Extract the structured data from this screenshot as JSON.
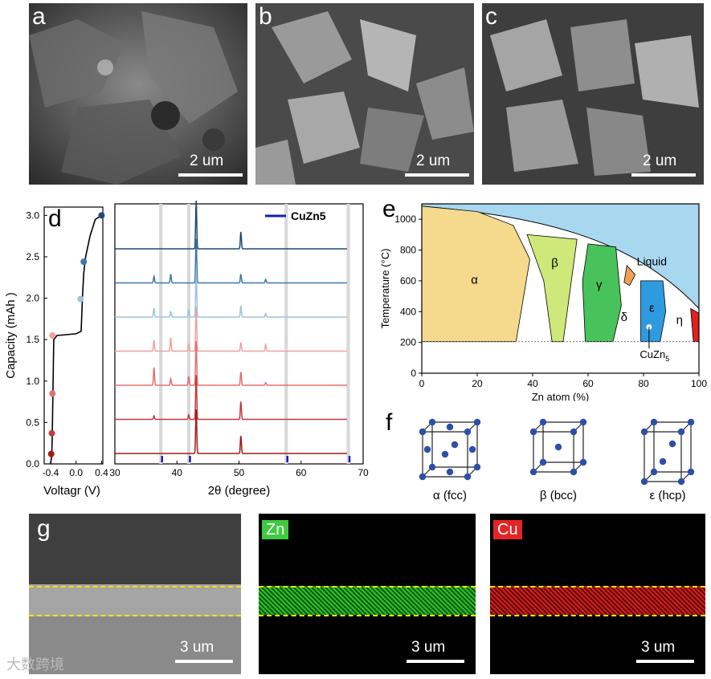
{
  "panels": {
    "a": {
      "letter": "a",
      "scale": "2 um"
    },
    "b": {
      "letter": "b",
      "scale": "2 um"
    },
    "c": {
      "letter": "c",
      "scale": "2 um"
    },
    "d": {
      "letter": "d"
    },
    "e": {
      "letter": "e"
    },
    "f": {
      "letter": "f"
    },
    "g": {
      "letter": "g",
      "scale": "3 um"
    },
    "zn": {
      "label": "Zn",
      "scale": "3 um",
      "color": "#3ecb3e"
    },
    "cu": {
      "label": "Cu",
      "scale": "3 um",
      "color": "#e52525"
    }
  },
  "watermark": "大数跨境",
  "chart_data": [
    {
      "type": "line",
      "panel": "d-left",
      "xlabel": "Voltagr (V)",
      "ylabel": "Capacity (mAh )",
      "xticks": [
        "-0.4",
        "0.0",
        "0.4"
      ],
      "yticks": [
        "0.0",
        "0.5",
        "1.0",
        "1.5",
        "2.0",
        "2.5",
        "3.0"
      ],
      "ylim": [
        0,
        3.1
      ],
      "curve": [
        [
          -0.4,
          0.0
        ],
        [
          -0.38,
          0.1
        ],
        [
          -0.37,
          0.5
        ],
        [
          -0.36,
          1.0
        ],
        [
          -0.35,
          1.5
        ],
        [
          -0.3,
          1.55
        ],
        [
          0.0,
          1.57
        ],
        [
          0.08,
          1.6
        ],
        [
          0.1,
          2.0
        ],
        [
          0.12,
          2.3
        ],
        [
          0.15,
          2.5
        ],
        [
          0.22,
          2.75
        ],
        [
          0.3,
          2.95
        ],
        [
          0.4,
          3.0
        ]
      ],
      "points": [
        {
          "x": -0.39,
          "y": 0.12,
          "color": "#a31a1a"
        },
        {
          "x": -0.38,
          "y": 0.37,
          "color": "#c23a3a"
        },
        {
          "x": -0.37,
          "y": 0.85,
          "color": "#e07070"
        },
        {
          "x": -0.37,
          "y": 1.55,
          "color": "#f2a0a0"
        },
        {
          "x": 0.07,
          "y": 1.99,
          "color": "#9cc3e0"
        },
        {
          "x": 0.12,
          "y": 2.44,
          "color": "#3c78aa"
        },
        {
          "x": 0.4,
          "y": 3.0,
          "color": "#1e4a78"
        }
      ]
    },
    {
      "type": "line",
      "panel": "d-right",
      "xlabel": "2θ (degree)",
      "xticks": [
        "30",
        "40",
        "50",
        "60",
        "70"
      ],
      "xlim": [
        30,
        70
      ],
      "legend": "CuZn5",
      "legend_color": "#1a1ab8",
      "ref_lines": [
        37.4,
        41.9,
        57.6,
        67.6
      ],
      "ref_peaks": [
        37.6,
        42.1,
        57.8,
        67.8
      ],
      "series": [
        {
          "color": "#1e4a78",
          "peaks": [
            [
              43.1,
              1.0
            ],
            [
              50.3,
              0.35
            ]
          ]
        },
        {
          "color": "#3c78aa",
          "peaks": [
            [
              36.3,
              0.15
            ],
            [
              39.0,
              0.2
            ],
            [
              43.1,
              1.0
            ],
            [
              50.3,
              0.2
            ],
            [
              54.3,
              0.08
            ]
          ]
        },
        {
          "color": "#9cc3e0",
          "peaks": [
            [
              36.3,
              0.2
            ],
            [
              39.0,
              0.12
            ],
            [
              41.9,
              0.15
            ],
            [
              43.1,
              1.0
            ],
            [
              50.3,
              0.25
            ],
            [
              54.3,
              0.08
            ]
          ]
        },
        {
          "color": "#f2a0a0",
          "peaks": [
            [
              36.3,
              0.25
            ],
            [
              39.0,
              0.3
            ],
            [
              41.9,
              0.15
            ],
            [
              43.1,
              1.0
            ],
            [
              50.3,
              0.2
            ],
            [
              54.3,
              0.15
            ]
          ]
        },
        {
          "color": "#e07070",
          "peaks": [
            [
              36.3,
              0.4
            ],
            [
              39.0,
              0.15
            ],
            [
              41.9,
              0.2
            ],
            [
              43.1,
              1.0
            ],
            [
              50.3,
              0.3
            ],
            [
              54.3,
              0.06
            ]
          ]
        },
        {
          "color": "#c23a3a",
          "peaks": [
            [
              36.3,
              0.08
            ],
            [
              41.9,
              0.1
            ],
            [
              43.1,
              1.0
            ],
            [
              50.3,
              0.4
            ]
          ]
        },
        {
          "color": "#a31a1a",
          "peaks": [
            [
              43.1,
              1.0
            ],
            [
              50.3,
              0.4
            ]
          ]
        }
      ]
    },
    {
      "type": "area",
      "panel": "e",
      "xlabel": "Zn atom (%)",
      "ylabel": "Temperature (°C)",
      "xticks": [
        "0",
        "20",
        "40",
        "60",
        "80",
        "100"
      ],
      "yticks": [
        "0",
        "200",
        "400",
        "600",
        "800",
        "1000"
      ],
      "xlim": [
        0,
        100
      ],
      "ylim": [
        0,
        1100
      ],
      "regions": [
        {
          "label": "Liquid",
          "color": "#a8d8f0"
        },
        {
          "label": "α",
          "color": "#f5d98c"
        },
        {
          "label": "β",
          "color": "#cfe87a"
        },
        {
          "label": "γ",
          "color": "#48c25a"
        },
        {
          "label": "δ",
          "color": "#f0a050"
        },
        {
          "label": "ε",
          "color": "#2e9be0"
        },
        {
          "label": "η",
          "color": "#ffffff"
        },
        {
          "label": "",
          "color": "#e01f1f"
        }
      ],
      "annotation": "CuZn",
      "annotation_sub": "5"
    }
  ],
  "crystals": [
    {
      "label": "α (fcc)"
    },
    {
      "label": "β (bcc)"
    },
    {
      "label": "ε (hcp)"
    }
  ]
}
